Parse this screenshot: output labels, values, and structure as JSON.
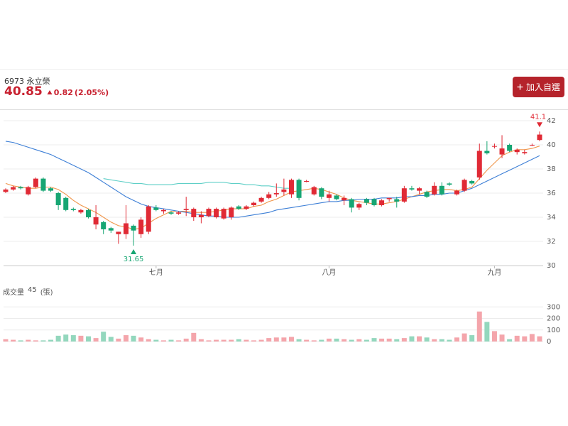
{
  "header": {
    "stock": "6973 永立榮",
    "price": 40.85,
    "change": 0.82,
    "change_percent": "(2.05%)",
    "button": "加入自選"
  },
  "chart_data": [
    {
      "type": "candlestick",
      "categories": [
        null,
        null,
        null,
        null,
        null,
        null,
        null,
        null,
        null,
        null,
        null,
        null,
        null,
        null,
        null,
        null,
        null,
        null,
        null,
        null,
        "七月",
        null,
        null,
        null,
        null,
        null,
        null,
        null,
        null,
        null,
        null,
        null,
        null,
        null,
        null,
        null,
        null,
        null,
        null,
        null,
        null,
        null,
        null,
        "八月",
        null,
        null,
        null,
        null,
        null,
        null,
        null,
        null,
        null,
        null,
        null,
        null,
        null,
        null,
        null,
        null,
        null,
        null,
        null,
        null,
        null,
        "九月",
        null,
        null,
        null,
        null,
        null,
        null
      ],
      "ohlc": [
        [
          36.1,
          36.4,
          36.0,
          36.3
        ],
        [
          36.3,
          36.6,
          36.2,
          36.5
        ],
        [
          36.5,
          36.6,
          36.3,
          36.4
        ],
        [
          35.9,
          36.6,
          35.8,
          36.5
        ],
        [
          36.5,
          37.3,
          36.4,
          37.2
        ],
        [
          37.2,
          37.3,
          36.1,
          36.2
        ],
        [
          36.4,
          36.5,
          36.1,
          36.2
        ],
        [
          36.0,
          36.1,
          34.6,
          35.0
        ],
        [
          35.6,
          35.7,
          34.5,
          34.6
        ],
        [
          34.7,
          34.8,
          34.5,
          34.6
        ],
        [
          34.4,
          34.7,
          34.3,
          34.6
        ],
        [
          34.6,
          34.7,
          33.9,
          34.0
        ],
        [
          33.4,
          35.0,
          33.0,
          34.0
        ],
        [
          33.6,
          33.7,
          32.6,
          33.0
        ],
        [
          33.1,
          33.2,
          32.7,
          32.9
        ],
        [
          32.6,
          32.8,
          31.8,
          32.8
        ],
        [
          32.6,
          35.0,
          32.2,
          33.5
        ],
        [
          33.3,
          33.4,
          31.65,
          32.9
        ],
        [
          32.6,
          34.0,
          32.3,
          33.8
        ],
        [
          32.8,
          35.0,
          32.6,
          34.9
        ],
        [
          34.8,
          35.0,
          34.5,
          34.6
        ],
        [
          34.5,
          34.7,
          34.3,
          34.6
        ],
        [
          34.4,
          34.5,
          34.2,
          34.3
        ],
        [
          34.3,
          34.5,
          34.2,
          34.4
        ],
        [
          34.6,
          35.7,
          34.1,
          34.7
        ],
        [
          34.0,
          34.8,
          33.7,
          34.7
        ],
        [
          34.0,
          34.5,
          33.5,
          34.2
        ],
        [
          34.1,
          34.8,
          34.0,
          34.7
        ],
        [
          34.0,
          34.8,
          33.9,
          34.7
        ],
        [
          33.9,
          34.8,
          33.8,
          34.7
        ],
        [
          34.0,
          34.9,
          33.8,
          34.8
        ],
        [
          34.9,
          35.0,
          34.6,
          34.7
        ],
        [
          34.7,
          35.0,
          34.6,
          34.9
        ],
        [
          35.0,
          35.3,
          34.9,
          35.2
        ],
        [
          35.3,
          35.7,
          35.2,
          35.6
        ],
        [
          35.6,
          36.1,
          35.5,
          35.9
        ],
        [
          35.9,
          36.8,
          35.7,
          36.0
        ],
        [
          36.1,
          37.2,
          35.8,
          36.3
        ],
        [
          35.9,
          37.2,
          35.6,
          37.1
        ],
        [
          37.1,
          37.2,
          35.4,
          35.6
        ],
        [
          37.0,
          37.1,
          36.9,
          37.0
        ],
        [
          35.9,
          36.6,
          35.8,
          36.5
        ],
        [
          36.4,
          36.5,
          35.5,
          35.7
        ],
        [
          35.6,
          36.2,
          35.3,
          35.9
        ],
        [
          35.8,
          35.9,
          35.4,
          35.5
        ],
        [
          35.4,
          35.8,
          35.0,
          35.6
        ],
        [
          35.5,
          35.6,
          34.4,
          34.8
        ],
        [
          34.8,
          35.2,
          34.6,
          35.1
        ],
        [
          35.5,
          35.6,
          35.0,
          35.2
        ],
        [
          35.5,
          35.6,
          34.9,
          35.0
        ],
        [
          35.0,
          35.5,
          34.9,
          35.4
        ],
        [
          35.5,
          35.6,
          35.3,
          35.6
        ],
        [
          35.5,
          35.7,
          34.8,
          35.3
        ],
        [
          35.3,
          36.6,
          35.2,
          36.4
        ],
        [
          36.4,
          36.6,
          36.2,
          36.3
        ],
        [
          36.2,
          36.5,
          35.9,
          36.4
        ],
        [
          36.1,
          36.2,
          35.6,
          35.7
        ],
        [
          35.9,
          36.9,
          35.8,
          36.6
        ],
        [
          36.6,
          36.9,
          35.8,
          35.9
        ],
        [
          36.8,
          36.9,
          36.6,
          36.7
        ],
        [
          35.9,
          36.3,
          35.8,
          36.2
        ],
        [
          36.2,
          37.2,
          36.1,
          37.1
        ],
        [
          37.0,
          37.1,
          36.7,
          36.8
        ],
        [
          37.3,
          40.1,
          37.1,
          39.5
        ],
        [
          39.5,
          40.3,
          39.2,
          39.3
        ],
        [
          39.9,
          40.1,
          39.7,
          39.9
        ],
        [
          39.2,
          40.8,
          38.9,
          39.7
        ],
        [
          40.0,
          40.1,
          39.4,
          39.5
        ],
        [
          39.4,
          39.7,
          39.2,
          39.6
        ],
        [
          39.3,
          39.6,
          39.2,
          39.4
        ],
        [
          40.0,
          40.1,
          39.9,
          40.0
        ],
        [
          40.4,
          41.1,
          40.3,
          40.85
        ]
      ],
      "lines": [
        {
          "color": "#f0954a",
          "values": [
            36.8,
            36.6,
            36.5,
            36.4,
            36.4,
            36.5,
            36.5,
            36.3,
            35.9,
            35.4,
            35.0,
            34.7,
            34.4,
            34.0,
            33.6,
            33.3,
            33.2,
            33.0,
            33.1,
            33.5,
            33.9,
            34.2,
            34.5,
            34.5,
            34.5,
            34.4,
            34.4,
            34.4,
            34.5,
            34.6,
            34.7,
            34.7,
            34.7,
            34.9,
            35.0,
            35.3,
            35.5,
            35.8,
            36.1,
            36.2,
            36.3,
            36.4,
            36.3,
            36.1,
            35.9,
            35.6,
            35.4,
            35.3,
            35.2,
            35.1,
            35.1,
            35.2,
            35.3,
            35.5,
            35.7,
            35.9,
            36.1,
            36.2,
            36.3,
            36.3,
            36.2,
            36.3,
            36.5,
            37.2,
            37.9,
            38.5,
            39.1,
            39.4,
            39.6,
            39.6,
            39.7,
            39.9
          ]
        },
        {
          "color": "#3d7fd6",
          "values": [
            40.3,
            40.2,
            40.0,
            39.8,
            39.6,
            39.4,
            39.2,
            38.9,
            38.6,
            38.3,
            38.0,
            37.7,
            37.3,
            36.9,
            36.5,
            36.1,
            35.7,
            35.4,
            35.1,
            34.9,
            34.8,
            34.7,
            34.6,
            34.5,
            34.4,
            34.3,
            34.2,
            34.1,
            34.1,
            34.0,
            34.0,
            34.0,
            34.1,
            34.2,
            34.3,
            34.4,
            34.6,
            34.7,
            34.8,
            34.9,
            35.0,
            35.1,
            35.2,
            35.3,
            35.3,
            35.4,
            35.4,
            35.5,
            35.5,
            35.5,
            35.6,
            35.6,
            35.6,
            35.7,
            35.7,
            35.8,
            35.8,
            35.9,
            35.9,
            36.0,
            36.0,
            36.2,
            36.4,
            36.7,
            37.0,
            37.3,
            37.6,
            37.9,
            38.2,
            38.5,
            38.8,
            39.1
          ]
        },
        {
          "color": "#5fcfc7",
          "values": [
            null,
            null,
            null,
            null,
            null,
            null,
            null,
            null,
            null,
            null,
            null,
            null,
            null,
            37.2,
            37.1,
            37.0,
            36.9,
            36.8,
            36.8,
            36.7,
            36.7,
            36.7,
            36.7,
            36.8,
            36.8,
            36.8,
            36.8,
            36.9,
            36.9,
            36.9,
            36.8,
            36.8,
            36.7,
            36.7,
            36.6,
            36.6,
            36.5,
            36.4,
            36.4,
            null,
            null,
            null,
            null,
            null,
            null,
            null,
            null,
            null,
            null,
            null,
            null,
            null,
            null,
            null,
            null,
            null,
            null,
            null,
            null,
            null,
            null,
            null,
            null,
            null,
            null,
            null,
            null,
            null,
            null,
            null,
            null,
            null
          ]
        }
      ],
      "up_color": "#e02a35",
      "down_color": "#17a673",
      "max_label": 41.1,
      "min_label": 31.65,
      "ylim": [
        30,
        42
      ],
      "yticks": [
        30,
        32,
        34,
        36,
        38,
        40,
        42
      ],
      "grid": true
    },
    {
      "type": "bar",
      "title": "成交量",
      "unit": "(張)",
      "values": [
        20,
        15,
        10,
        15,
        10,
        10,
        15,
        50,
        60,
        55,
        50,
        45,
        30,
        85,
        40,
        25,
        55,
        50,
        35,
        20,
        15,
        10,
        15,
        10,
        25,
        75,
        20,
        10,
        15,
        15,
        15,
        20,
        15,
        10,
        15,
        30,
        35,
        35,
        40,
        20,
        15,
        10,
        15,
        25,
        25,
        20,
        15,
        20,
        15,
        30,
        25,
        25,
        20,
        30,
        45,
        45,
        35,
        20,
        20,
        15,
        35,
        70,
        55,
        260,
        170,
        90,
        60,
        20,
        50,
        45,
        65,
        45
      ],
      "up_color": "#f4a5ab",
      "down_color": "#93d7bd",
      "ylim": [
        0,
        320
      ],
      "yticks": [
        0,
        100,
        200,
        300
      ],
      "grid": true
    }
  ]
}
